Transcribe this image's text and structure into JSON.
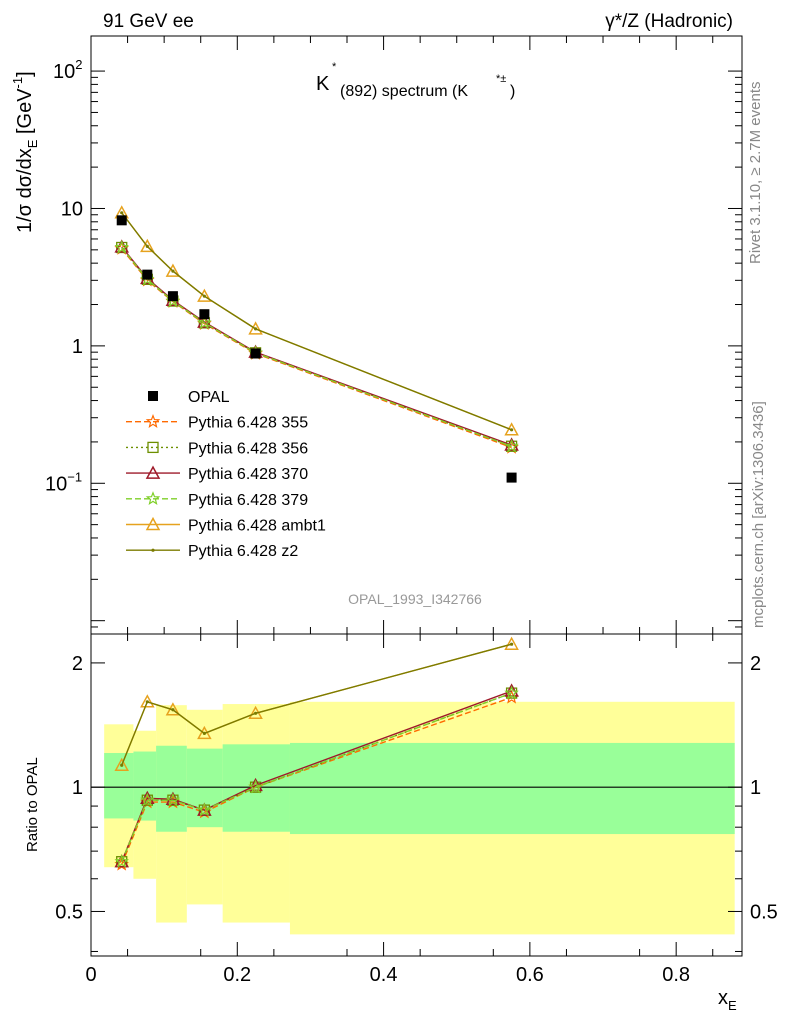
{
  "header": {
    "left": "91 GeV ee",
    "right": "γ*/Z (Hadronic)",
    "plot_title_main": "K",
    "plot_title_star": "*",
    "plot_title_rest": "(892) spectrum (K",
    "plot_title_sup": "*±",
    "plot_title_close": ")"
  },
  "side_labels": {
    "rivet": "Rivet 3.1.10, ≥ 2.7M events",
    "mcplots": "mcplots.cern.ch [arXiv:1306.3436]"
  },
  "watermark": "OPAL_1993_I342766",
  "chart_data": [
    {
      "type": "line",
      "log_y": true,
      "ylabel": "1/σ dσ/dx_E [GeV^-1]",
      "xlim": [
        0,
        0.89
      ],
      "ylim": [
        0.008,
        180
      ],
      "yticks": [
        {
          "value": 0.1,
          "label": "10",
          "sup": "−1"
        },
        {
          "value": 1,
          "label": "1",
          "sup": ""
        },
        {
          "value": 10,
          "label": "10",
          "sup": ""
        },
        {
          "value": 100,
          "label": "10",
          "sup": "2"
        }
      ],
      "x": [
        0.042,
        0.077,
        0.112,
        0.155,
        0.225,
        0.575
      ],
      "data_series": {
        "name": "OPAL",
        "values": [
          8.2,
          3.3,
          2.3,
          1.7,
          0.88,
          0.11
        ]
      },
      "series": [
        {
          "name": "Pythia 6.428 355",
          "color": "#ff6a00",
          "dash": "6,3",
          "marker": "star",
          "values": [
            5.1,
            3.0,
            2.1,
            1.45,
            0.88,
            0.182
          ]
        },
        {
          "name": "Pythia 6.428 356",
          "color": "#6d8f00",
          "dash": "2,3",
          "marker": "square",
          "values": [
            5.2,
            3.05,
            2.12,
            1.47,
            0.89,
            0.186
          ]
        },
        {
          "name": "Pythia 6.428 370",
          "color": "#9e1a2a",
          "dash": "",
          "marker": "triangle",
          "values": [
            5.25,
            3.1,
            2.15,
            1.49,
            0.9,
            0.19
          ]
        },
        {
          "name": "Pythia 6.428 379",
          "color": "#7fcf28",
          "dash": "6,3",
          "marker": "star",
          "values": [
            5.2,
            3.05,
            2.12,
            1.47,
            0.89,
            0.186
          ]
        },
        {
          "name": "Pythia 6.428 ambt1",
          "color": "#e6a21e",
          "dash": "",
          "marker": "triangle",
          "values": [
            9.3,
            5.3,
            3.5,
            2.3,
            1.33,
            0.245
          ]
        },
        {
          "name": "Pythia 6.428 z2",
          "color": "#7b7b00",
          "dash": "",
          "marker": "dot",
          "values": [
            9.3,
            5.3,
            3.5,
            2.3,
            1.33,
            0.245
          ]
        }
      ]
    },
    {
      "type": "line",
      "log_y": true,
      "ylabel": "Ratio to OPAL",
      "xlabel": "x_E",
      "xlim": [
        0,
        0.89
      ],
      "ylim": [
        0.39,
        2.35
      ],
      "xticks": [
        0,
        0.2,
        0.4,
        0.6,
        0.8
      ],
      "xtick_labels": [
        "0",
        "0.2",
        "0.4",
        "0.6",
        "0.8"
      ],
      "yticks": [
        0.5,
        1,
        2
      ],
      "ytick_labels": [
        "0.5",
        "1",
        "2"
      ],
      "uncertainty_bands": {
        "bin_edges": [
          0.018,
          0.058,
          0.089,
          0.131,
          0.18,
          0.272,
          0.88
        ],
        "stat_lo": [
          0.84,
          0.83,
          0.78,
          0.8,
          0.78,
          0.77
        ],
        "stat_hi": [
          1.21,
          1.22,
          1.26,
          1.24,
          1.27,
          1.28
        ],
        "total_lo": [
          0.64,
          0.6,
          0.47,
          0.52,
          0.47,
          0.44
        ],
        "total_hi": [
          1.42,
          1.37,
          1.58,
          1.54,
          1.59,
          1.61
        ],
        "stat_color": "#99ff99",
        "total_color": "#ffff99"
      },
      "x": [
        0.042,
        0.077,
        0.112,
        0.155,
        0.225,
        0.575
      ],
      "series": [
        {
          "name": "Pythia 6.428 355",
          "values": [
            0.65,
            0.92,
            0.92,
            0.87,
            1.0,
            1.65
          ]
        },
        {
          "name": "Pythia 6.428 356",
          "values": [
            0.66,
            0.93,
            0.93,
            0.88,
            1.0,
            1.69
          ]
        },
        {
          "name": "Pythia 6.428 370",
          "values": [
            0.66,
            0.94,
            0.935,
            0.88,
            1.01,
            1.71
          ]
        },
        {
          "name": "Pythia 6.428 379",
          "values": [
            0.66,
            0.93,
            0.93,
            0.88,
            1.0,
            1.69
          ]
        },
        {
          "name": "Pythia 6.428 ambt1",
          "values": [
            1.13,
            1.61,
            1.54,
            1.35,
            1.51,
            2.22
          ]
        },
        {
          "name": "Pythia 6.428 z2",
          "values": [
            1.13,
            1.61,
            1.54,
            1.35,
            1.51,
            2.22
          ]
        }
      ]
    }
  ]
}
